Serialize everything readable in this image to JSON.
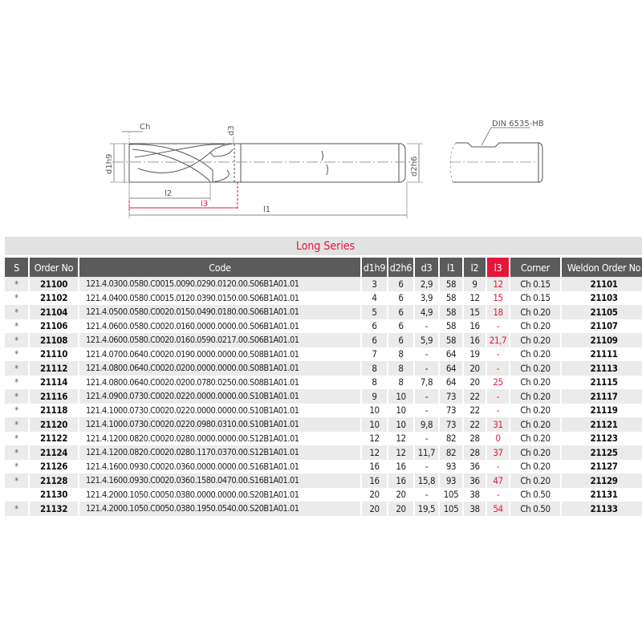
{
  "drawing": {
    "labels": {
      "ch": "Ch",
      "d3": "d3",
      "d1h9": "d1h9",
      "d2h6": "d2h6",
      "l1": "l1",
      "l2": "l2",
      "l3": "l3",
      "shank_standard": "DIN 6535-HB"
    },
    "accent_color": "#e4163a"
  },
  "table": {
    "title": "Long Series",
    "columns": [
      "S",
      "Order No",
      "Code",
      "d1h9",
      "d2h6",
      "d3",
      "l1",
      "l2",
      "l3",
      "Corner",
      "Weldon Order No"
    ],
    "highlight_column": "l3",
    "rows": [
      [
        "*",
        "21100",
        "121.4.0300.0580.C0015.0090.0290.0120.00.S06B1A01.01",
        "3",
        "6",
        "2,9",
        "58",
        "9",
        "12",
        "Ch 0.15",
        "21101"
      ],
      [
        "*",
        "21102",
        "121.4.0400.0580.C0015.0120.0390.0150.00.S06B1A01.01",
        "4",
        "6",
        "3,9",
        "58",
        "12",
        "15",
        "Ch 0.15",
        "21103"
      ],
      [
        "*",
        "21104",
        "121.4.0500.0580.C0020.0150.0490.0180.00.S06B1A01.01",
        "5",
        "6",
        "4,9",
        "58",
        "15",
        "18",
        "Ch 0.20",
        "21105"
      ],
      [
        "*",
        "21106",
        "121.4.0600.0580.C0020.0160.0000.0000.00.S06B1A01.01",
        "6",
        "6",
        "-",
        "58",
        "16",
        "-",
        "Ch 0.20",
        "21107"
      ],
      [
        "*",
        "21108",
        "121.4.0600.0580.C0020.0160.0590.0217.00.S06B1A01.01",
        "6",
        "6",
        "5,9",
        "58",
        "16",
        "21,7",
        "Ch 0.20",
        "21109"
      ],
      [
        "*",
        "21110",
        "121.4.0700.0640.C0020.0190.0000.0000.00.S08B1A01.01",
        "7",
        "8",
        "-",
        "64",
        "19",
        "-",
        "Ch 0.20",
        "21111"
      ],
      [
        "*",
        "21112",
        "121.4.0800.0640.C0020.0200.0000.0000.00.S08B1A01.01",
        "8",
        "8",
        "-",
        "64",
        "20",
        "-",
        "Ch 0.20",
        "21113"
      ],
      [
        "*",
        "21114",
        "121.4.0800.0640.C0020.0200.0780.0250.00.S08B1A01.01",
        "8",
        "8",
        "7,8",
        "64",
        "20",
        "25",
        "Ch 0.20",
        "21115"
      ],
      [
        "*",
        "21116",
        "121.4.0900.0730.C0020.0220.0000.0000.00.S10B1A01.01",
        "9",
        "10",
        "-",
        "73",
        "22",
        "-",
        "Ch 0.20",
        "21117"
      ],
      [
        "*",
        "21118",
        "121.4.1000.0730.C0020.0220.0000.0000.00.S10B1A01.01",
        "10",
        "10",
        "-",
        "73",
        "22",
        "-",
        "Ch 0.20",
        "21119"
      ],
      [
        "*",
        "21120",
        "121.4.1000.0730.C0020.0220.0980.0310.00.S10B1A01.01",
        "10",
        "10",
        "9,8",
        "73",
        "22",
        "31",
        "Ch 0.20",
        "21121"
      ],
      [
        "*",
        "21122",
        "121.4.1200.0820.C0020.0280.0000.0000.00.S12B1A01.01",
        "12",
        "12",
        "-",
        "82",
        "28",
        "0",
        "Ch 0.20",
        "21123"
      ],
      [
        "*",
        "21124",
        "121.4.1200.0820.C0020.0280.1170.0370.00.S12B1A01.01",
        "12",
        "12",
        "11,7",
        "82",
        "28",
        "37",
        "Ch 0.20",
        "21125"
      ],
      [
        "*",
        "21126",
        "121.4.1600.0930.C0020.0360.0000.0000.00.S16B1A01.01",
        "16",
        "16",
        "-",
        "93",
        "36",
        "-",
        "Ch 0.20",
        "21127"
      ],
      [
        "*",
        "21128",
        "121.4.1600.0930.C0020.0360.1580.0470.00.S16B1A01.01",
        "16",
        "16",
        "15,8",
        "93",
        "36",
        "47",
        "Ch 0.20",
        "21129"
      ],
      [
        "",
        "21130",
        "121.4.2000.1050.C0050.0380.0000.0000.00.S20B1A01.01",
        "20",
        "20",
        "-",
        "105",
        "38",
        "-",
        "Ch 0.50",
        "21131"
      ],
      [
        "*",
        "21132",
        "121.4.2000.1050.C0050.0380.1950.0540.00.S20B1A01.01",
        "20",
        "20",
        "19,5",
        "105",
        "38",
        "54",
        "Ch 0.50",
        "21133"
      ]
    ]
  }
}
